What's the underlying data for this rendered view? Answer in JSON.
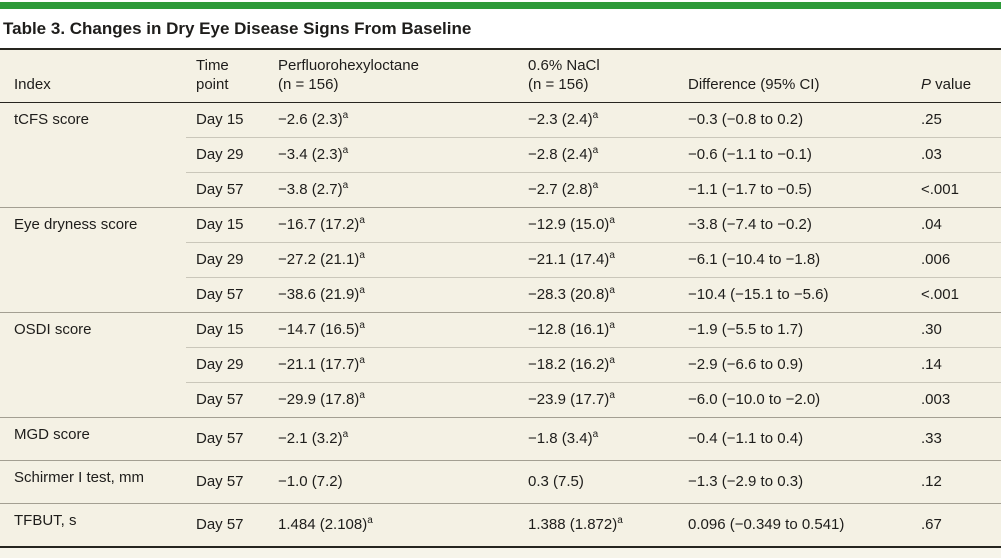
{
  "title": "Table 3. Changes in Dry Eye Disease Signs From Baseline",
  "colors": {
    "accent_bar_green": "#2d9a39",
    "table_background": "#f4f1e4",
    "dark_rule": "#26251f",
    "group_divider": "#a39f92",
    "row_divider": "#cac7ba",
    "text": "#1e1d1b"
  },
  "footnote_marker": "a",
  "table": {
    "column_headers": [
      {
        "id": "index",
        "lines": [
          "Index"
        ]
      },
      {
        "id": "time_point",
        "lines": [
          "Time",
          "point"
        ]
      },
      {
        "id": "perfluorohexyloctane",
        "lines": [
          "Perfluorohexyloctane",
          "(n = 156)"
        ]
      },
      {
        "id": "nacl",
        "lines": [
          "0.6% NaCl",
          "(n = 156)"
        ]
      },
      {
        "id": "difference",
        "lines": [
          "Difference (95% CI)"
        ]
      },
      {
        "id": "p_value",
        "lines": [
          "P value"
        ],
        "italic_prefix": "P"
      }
    ],
    "groups": [
      {
        "index": "tCFS score",
        "rows": [
          {
            "time_point": "Day 15",
            "perfluorohexyloctane": "−2.6 (2.3)^a",
            "nacl": "−2.3 (2.4)^a",
            "difference": "−0.3 (−0.8 to 0.2)",
            "p_value": ".25"
          },
          {
            "time_point": "Day 29",
            "perfluorohexyloctane": "−3.4 (2.3)^a",
            "nacl": "−2.8 (2.4)^a",
            "difference": "−0.6 (−1.1 to −0.1)",
            "p_value": ".03"
          },
          {
            "time_point": "Day 57",
            "perfluorohexyloctane": "−3.8 (2.7)^a",
            "nacl": "−2.7 (2.8)^a",
            "difference": "−1.1 (−1.7 to −0.5)",
            "p_value": "<.001"
          }
        ]
      },
      {
        "index": "Eye dryness score",
        "rows": [
          {
            "time_point": "Day 15",
            "perfluorohexyloctane": "−16.7 (17.2)^a",
            "nacl": "−12.9 (15.0)^a",
            "difference": "−3.8 (−7.4 to −0.2)",
            "p_value": ".04"
          },
          {
            "time_point": "Day 29",
            "perfluorohexyloctane": "−27.2 (21.1)^a",
            "nacl": "−21.1 (17.4)^a",
            "difference": "−6.1 (−10.4 to −1.8)",
            "p_value": ".006"
          },
          {
            "time_point": "Day 57",
            "perfluorohexyloctane": "−38.6 (21.9)^a",
            "nacl": "−28.3 (20.8)^a",
            "difference": "−10.4 (−15.1 to −5.6)",
            "p_value": "<.001"
          }
        ]
      },
      {
        "index": "OSDI score",
        "rows": [
          {
            "time_point": "Day 15",
            "perfluorohexyloctane": "−14.7 (16.5)^a",
            "nacl": "−12.8 (16.1)^a",
            "difference": "−1.9 (−5.5 to 1.7)",
            "p_value": ".30"
          },
          {
            "time_point": "Day 29",
            "perfluorohexyloctane": "−21.1 (17.7)^a",
            "nacl": "−18.2 (16.2)^a",
            "difference": "−2.9 (−6.6 to 0.9)",
            "p_value": ".14"
          },
          {
            "time_point": "Day 57",
            "perfluorohexyloctane": "−29.9 (17.8)^a",
            "nacl": "−23.9 (17.7)^a",
            "difference": "−6.0 (−10.0 to −2.0)",
            "p_value": ".003"
          }
        ]
      },
      {
        "index": "MGD score",
        "rows": [
          {
            "time_point": "Day 57",
            "perfluorohexyloctane": "−2.1 (3.2)^a",
            "nacl": "−1.8 (3.4)^a",
            "difference": "−0.4 (−1.1 to 0.4)",
            "p_value": ".33"
          }
        ]
      },
      {
        "index": "Schirmer I test, mm",
        "rows": [
          {
            "time_point": "Day 57",
            "perfluorohexyloctane": "−1.0 (7.2)",
            "nacl": "0.3 (7.5)",
            "difference": "−1.3 (−2.9 to 0.3)",
            "p_value": ".12"
          }
        ]
      },
      {
        "index": "TFBUT, s",
        "rows": [
          {
            "time_point": "Day 57",
            "perfluorohexyloctane": "1.484 (2.108)^a",
            "nacl": "1.388 (1.872)^a",
            "difference": "0.096 (−0.349 to 0.541)",
            "p_value": ".67"
          }
        ]
      }
    ]
  }
}
